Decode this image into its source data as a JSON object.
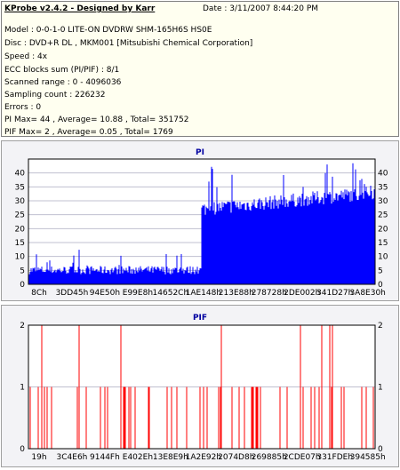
{
  "header": {
    "title": "KProbe v2.4.2 - Designed by Karr",
    "date": "Date : 3/11/2007 8:44:20 PM",
    "lines": [
      "Model : 0-0-1-0 LITE-ON DVDRW SHM-165H6S HS0E",
      "Disc : DVD+R DL , MKM001 [Mitsubishi Chemical Corporation]",
      "Speed : 4x",
      "ECC blocks sum (PI/PIF) : 8/1",
      "Scanned range : 0 - 4096036",
      "Sampling count : 226232",
      "Errors : 0",
      "PI Max= 44 , Average= 10.88 , Total= 351752",
      "PIF Max= 2 , Average= 0.05 , Total= 1769"
    ]
  },
  "colors": {
    "pi_bar": "#0000ff",
    "pif_bar": "#ff0000",
    "plot_bg": "#ffffff",
    "panel_bg": "#f3f3f6",
    "title": "#0000a0"
  },
  "chart_data": [
    {
      "type": "bar",
      "title": "PI",
      "ylim": [
        0,
        45
      ],
      "yticks": [
        0,
        5,
        10,
        15,
        20,
        25,
        30,
        35,
        40
      ],
      "xticks": [
        "8Ch",
        "3DD45h",
        "94E50h",
        "E99E8h",
        "14652Ch",
        "1AE148h",
        "213E88h",
        "278728h",
        "2DE002h",
        "341D27h",
        "3A8E30h"
      ],
      "grid": true,
      "segments": [
        {
          "range": [
            0,
            0.5
          ],
          "baseline": 4.5,
          "spread": 3,
          "spikes_max": 13
        },
        {
          "range": [
            0.5,
            1.0
          ],
          "baseline": 30,
          "spread": 5,
          "spikes_max": 44
        }
      ]
    },
    {
      "type": "bar",
      "title": "PIF",
      "ylim": [
        0,
        2
      ],
      "yticks": [
        0,
        1,
        2
      ],
      "xticks": [
        "19h",
        "3C4E6h",
        "9144Fh",
        "E402Eh",
        "13E8E9h",
        "1A2E92h",
        "2074D8h",
        "269885h",
        "2CDE07h",
        "331FDEh",
        "394585h"
      ],
      "grid": true
    }
  ]
}
